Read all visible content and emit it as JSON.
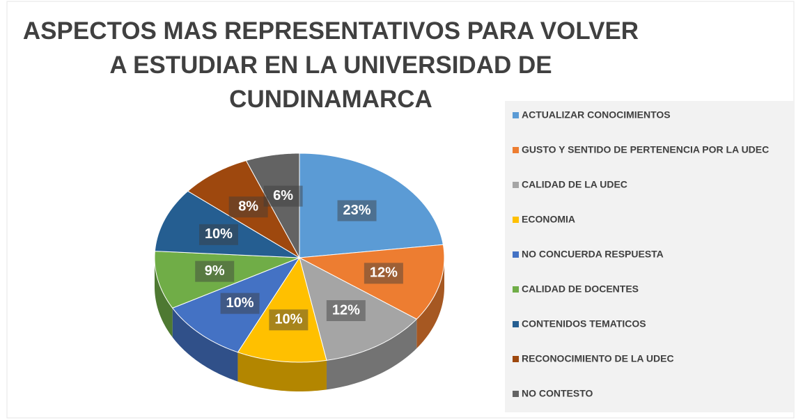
{
  "chart_data": {
    "type": "pie",
    "title": "ASPECTOS MAS REPRESENTATIVOS PARA VOLVER A ESTUDIAR EN LA UNIVERSIDAD DE CUNDINAMARCA",
    "categories": [
      "ACTUALIZAR CONOCIMIENTOS",
      "GUSTO Y SENTIDO DE PERTENENCIA POR LA UDEC",
      "CALIDAD DE LA UDEC",
      "ECONOMIA",
      "NO CONCUERDA RESPUESTA",
      "CALIDAD DE DOCENTES",
      "CONTENIDOS TEMATICOS",
      "RECONOCIMIENTO DE LA UDEC",
      "NO CONTESTO"
    ],
    "values": [
      23,
      12,
      12,
      10,
      10,
      9,
      10,
      8,
      6
    ],
    "value_labels": [
      "23%",
      "12%",
      "12%",
      "10%",
      "10%",
      "9%",
      "10%",
      "8%",
      "6%"
    ],
    "colors": [
      "#5b9bd5",
      "#ed7d31",
      "#a5a5a5",
      "#ffc000",
      "#4472c4",
      "#70ad47",
      "#255e91",
      "#9e480e",
      "#636363"
    ],
    "legend": "right"
  }
}
